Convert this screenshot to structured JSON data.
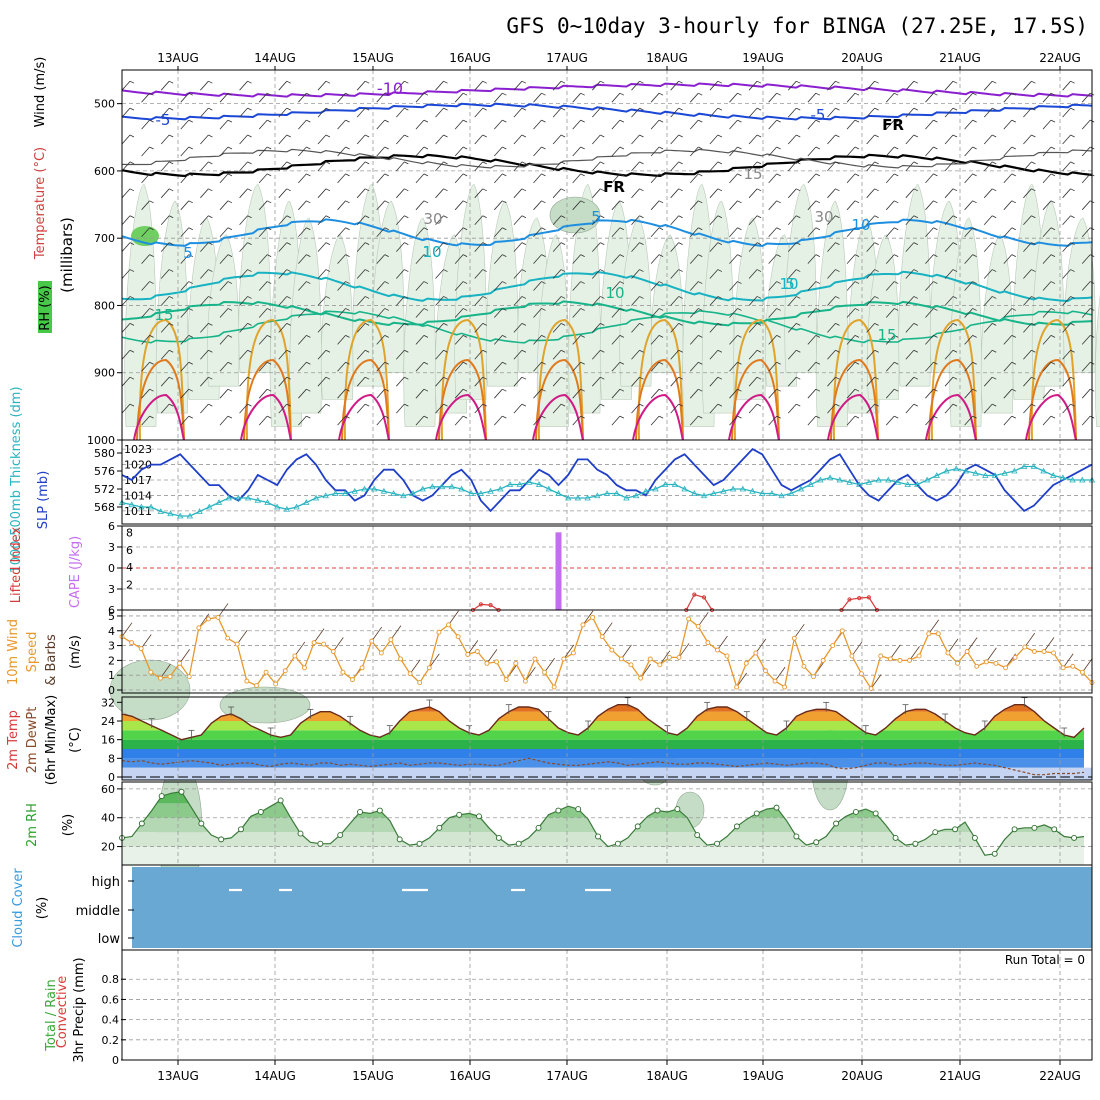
{
  "title": "GFS 0~10day 3-hourly for BINGA (27.25E, 17.5S)",
  "dates": [
    "13AUG",
    "14AUG",
    "15AUG",
    "16AUG",
    "17AUG",
    "18AUG",
    "19AUG",
    "20AUG",
    "21AUG",
    "22AUG"
  ],
  "colors": {
    "temp_neg10": "#8a1fd0",
    "temp_neg5": "#1b47d6",
    "temp_freeze": "#000000",
    "temp_5": "#1e8fe0",
    "temp_10": "#18b2c2",
    "temp_15": "#17b48a",
    "temp_warm": "#e0a32c",
    "temp_hot": "#e07a1f",
    "temp_hottest": "#d01a86",
    "rh_light": "#e4f1e4",
    "rh_mid": "#c5dcc6",
    "rh_dark": "#9fb8a1",
    "grid": "#9a9a9a",
    "slp": "#1f3fc8",
    "thickness": "#2ab4c0",
    "cape": "#c36ef0",
    "lifted": "#d83a3a",
    "wind10": "#e8982c",
    "barb": "#5a3a28",
    "cloud": "#6aa8d4",
    "rh2m": "#4caf50"
  },
  "chart_data": [
    {
      "panel": "upper-air cross-section",
      "type": "contour",
      "ylabel": "(millibars)",
      "side_labels": [
        "Wind (m/s)",
        "Temperature (°C)",
        "RH (%)"
      ],
      "yticks": [
        500,
        600,
        700,
        800,
        900,
        1000
      ],
      "ylim": [
        1000,
        450
      ],
      "contour_labels": [
        "-10",
        "-5",
        "-5",
        "FR",
        "FR",
        "5",
        "5",
        "10",
        "10",
        "10",
        "15",
        "15",
        "15",
        "10",
        "5",
        "10",
        "30",
        "30"
      ]
    },
    {
      "panel": "thickness and SLP",
      "type": "line",
      "left_label": "1000-500mb Thickness (dm)",
      "right_label": "SLP (mb)",
      "left_ticks": [
        568,
        572,
        576,
        580
      ],
      "right_ticks": [
        1011,
        1014,
        1017,
        1020,
        1023
      ],
      "series": [
        {
          "name": "SLP",
          "values": [
            1018,
            1017,
            1019,
            1020,
            1020,
            1021,
            1022,
            1020,
            1018,
            1016,
            1016,
            1014,
            1013,
            1015,
            1018,
            1017,
            1016,
            1019,
            1021,
            1022,
            1020,
            1017,
            1015,
            1015,
            1013,
            1014,
            1017,
            1019,
            1019,
            1017,
            1014,
            1013,
            1014,
            1016,
            1018,
            1019,
            1017,
            1013,
            1011,
            1013,
            1015,
            1015,
            1017,
            1019,
            1018,
            1016,
            1018,
            1021,
            1021,
            1019,
            1018,
            1016,
            1015,
            1015,
            1014,
            1017,
            1019,
            1021,
            1022,
            1020,
            1018,
            1016,
            1017,
            1019,
            1021,
            1023,
            1022,
            1019,
            1016,
            1015,
            1016,
            1017,
            1019,
            1021,
            1022,
            1019,
            1016,
            1014,
            1013,
            1015,
            1017,
            1018,
            1016,
            1014,
            1013,
            1014,
            1016,
            1019,
            1020,
            1019,
            1018,
            1015,
            1013,
            1011,
            1012,
            1014,
            1016,
            1017,
            1018,
            1019,
            1020
          ]
        },
        {
          "name": "Thickness",
          "values": [
            569,
            568.5,
            568,
            568,
            567,
            566.5,
            566,
            566,
            567,
            568,
            569,
            570,
            570,
            570,
            569.5,
            569,
            568,
            567.5,
            568,
            569,
            570,
            570.5,
            571,
            571,
            571.5,
            572,
            572,
            571.5,
            571,
            570.5,
            571,
            572,
            572.5,
            572.5,
            572.5,
            572,
            571,
            571,
            571.5,
            572,
            573,
            573,
            573.5,
            573,
            572,
            571,
            570,
            570,
            570,
            570.5,
            571,
            571,
            570,
            570.5,
            571.5,
            572,
            573,
            573,
            572,
            571,
            570.5,
            571,
            571.5,
            572,
            572,
            571.5,
            571,
            571,
            570.5,
            571,
            572,
            573,
            574,
            574.5,
            574,
            573.5,
            573,
            573.5,
            574,
            574,
            573.5,
            573,
            573,
            574,
            575,
            576,
            576.5,
            576,
            575.5,
            575,
            575,
            575.5,
            576,
            577,
            577,
            576,
            575,
            574.5,
            574,
            574,
            574
          ]
        }
      ]
    },
    {
      "panel": "stability",
      "type": "line",
      "left_label": "Lifted Index",
      "right_label": "CAPE (J/kg)",
      "left_ticks": [
        -6,
        -3,
        0,
        3,
        6
      ],
      "right_ticks": [
        2,
        4,
        6,
        8
      ],
      "lifted_index": [
        6,
        6,
        6,
        6,
        6,
        6,
        6,
        6,
        6,
        6,
        6,
        6,
        6,
        6,
        6,
        6,
        6,
        6,
        6,
        6,
        6,
        6,
        6,
        6,
        6,
        6,
        6,
        6,
        6,
        6,
        6,
        6,
        6,
        6,
        6,
        6,
        6,
        5.2,
        5.3,
        6,
        6,
        6,
        6,
        6,
        6,
        6,
        6,
        6,
        6,
        6,
        6,
        6,
        6,
        6,
        6,
        6,
        6,
        6,
        6,
        3.8,
        4.2,
        6,
        6,
        6,
        6,
        6,
        6,
        6,
        6,
        6,
        6,
        6,
        6,
        6,
        6,
        4.5,
        4.3,
        4.2,
        6,
        6,
        6,
        6,
        6,
        6,
        6,
        6,
        6,
        6,
        6,
        6,
        6,
        6,
        6,
        6,
        6,
        6,
        6,
        6,
        6,
        6,
        6
      ],
      "cape_bar": {
        "date_index": 45,
        "value": 8
      }
    },
    {
      "panel": "10m wind",
      "type": "line",
      "left_label": "10m Wind Speed & Barbs",
      "unit": "(m/s)",
      "ylim": [
        0,
        5
      ],
      "yticks": [
        0,
        1,
        2,
        3,
        4,
        5
      ],
      "values": [
        3.6,
        3.2,
        2.8,
        1.2,
        0.8,
        0.9,
        1.8,
        0.9,
        4.2,
        4.8,
        4.9,
        3.5,
        3.1,
        0.6,
        0.3,
        1.2,
        0.4,
        1.3,
        2.3,
        1.5,
        3.2,
        3.1,
        2.6,
        1.2,
        0.7,
        1.5,
        3.3,
        2.5,
        3.4,
        2.1,
        1.1,
        0.5,
        1.5,
        3.9,
        4.4,
        3.6,
        2.4,
        2.6,
        1.8,
        1.9,
        0.7,
        1.8,
        0.6,
        2.1,
        1.2,
        0.2,
        2.1,
        2.5,
        4.4,
        4.9,
        3.6,
        2.7,
        2.1,
        1.7,
        0.8,
        2.1,
        1.7,
        2.2,
        2.2,
        4.8,
        4.3,
        3.2,
        2.7,
        2.3,
        0.2,
        1.8,
        2.5,
        1.3,
        0.6,
        0.2,
        3.5,
        1.6,
        0.9,
        2.0,
        3.0,
        4.0,
        2.3,
        1.1,
        0.1,
        2.3,
        2.1,
        2.0,
        2.0,
        2.3,
        3.8,
        3.8,
        2.5,
        1.8,
        2.6,
        1.6,
        1.9,
        1.8,
        1.5,
        2.2,
        2.9,
        2.6,
        2.6,
        2.5,
        1.5,
        1.6,
        1.2,
        0.5
      ]
    },
    {
      "panel": "2m temperature",
      "type": "area",
      "left_label": "2m Temp 2m DewPt (6hr Min/Max)",
      "unit": "(°C)",
      "ylim": [
        0,
        32
      ],
      "yticks": [
        0,
        8,
        16,
        24,
        32
      ],
      "temp": [
        27,
        26,
        24,
        22,
        20,
        18,
        16,
        17,
        18,
        23,
        26,
        27,
        25,
        22,
        20,
        18,
        17,
        18,
        23,
        26,
        28,
        28,
        26,
        23,
        20,
        18,
        17,
        19,
        24,
        28,
        29,
        30,
        28,
        24,
        21,
        19,
        18,
        20,
        25,
        28,
        30,
        30,
        29,
        25,
        21,
        19,
        18,
        21,
        26,
        29,
        31,
        31,
        29,
        25,
        22,
        19,
        18,
        21,
        26,
        29,
        30,
        30,
        28,
        25,
        22,
        19,
        18,
        21,
        26,
        28,
        29,
        29,
        28,
        25,
        22,
        19,
        18,
        21,
        25,
        28,
        29,
        29,
        27,
        24,
        21,
        19,
        18,
        21,
        26,
        29,
        31,
        31,
        28,
        24,
        21,
        18,
        17,
        21
      ],
      "dewpoint": [
        7,
        6.5,
        7,
        6,
        5.5,
        6,
        6.5,
        7,
        6.5,
        6,
        5,
        5.5,
        6,
        6,
        5,
        4.5,
        5.5,
        6,
        5.5,
        5,
        6,
        6,
        5,
        5.5,
        5,
        4.5,
        5,
        5.5,
        6,
        5,
        5.5,
        6,
        6,
        5.5,
        5,
        5.5,
        5.5,
        5,
        5,
        6,
        7,
        8,
        7,
        6,
        5.5,
        5,
        5,
        5.5,
        6,
        6.5,
        6,
        5,
        5.5,
        6,
        6.5,
        6,
        5.5,
        5.5,
        6,
        6,
        5.5,
        5,
        4.5,
        5,
        5.5,
        6,
        5.5,
        5,
        5.5,
        6,
        6,
        5.5,
        4,
        3.5,
        4,
        5,
        6,
        6,
        5,
        5.5,
        6,
        6,
        5.5,
        5,
        5,
        5.5,
        6,
        5.5,
        5,
        4,
        3,
        2,
        1,
        1,
        1.5,
        1.5,
        1.5,
        2
      ]
    },
    {
      "panel": "2m RH",
      "type": "area",
      "left_label": "2m RH",
      "unit": "(%)",
      "ylim": [
        10,
        62
      ],
      "yticks": [
        20,
        40,
        60
      ],
      "values": [
        26,
        27,
        36,
        45,
        55,
        57,
        58,
        47,
        36,
        28,
        25,
        26,
        32,
        41,
        44,
        48,
        52,
        40,
        29,
        23,
        22,
        22,
        28,
        36,
        44,
        43,
        45,
        38,
        25,
        21,
        22,
        26,
        33,
        40,
        42,
        43,
        41,
        33,
        26,
        21,
        22,
        26,
        33,
        42,
        45,
        48,
        46,
        39,
        27,
        20,
        22,
        26,
        34,
        41,
        45,
        44,
        46,
        40,
        28,
        21,
        22,
        27,
        34,
        39,
        43,
        46,
        47,
        38,
        27,
        21,
        23,
        27,
        36,
        41,
        44,
        46,
        43,
        35,
        26,
        21,
        22,
        25,
        30,
        32,
        32,
        37,
        26,
        14,
        15,
        25,
        32,
        33,
        33,
        35,
        32,
        27,
        26,
        27
      ]
    },
    {
      "panel": "cloud cover",
      "type": "heatmap",
      "left_label": "Cloud Cover",
      "unit": "(%)",
      "levels": [
        "high",
        "middle",
        "low"
      ]
    },
    {
      "panel": "precipitation",
      "type": "bar",
      "left_label": "3hr Precip (mm)",
      "side_labels": [
        "Total / Rain",
        "Convective"
      ],
      "ylim": [
        0,
        1
      ],
      "yticks": [
        0,
        0.2,
        0.4,
        0.6,
        0.8
      ],
      "annotation": "Run Total = 0"
    }
  ]
}
